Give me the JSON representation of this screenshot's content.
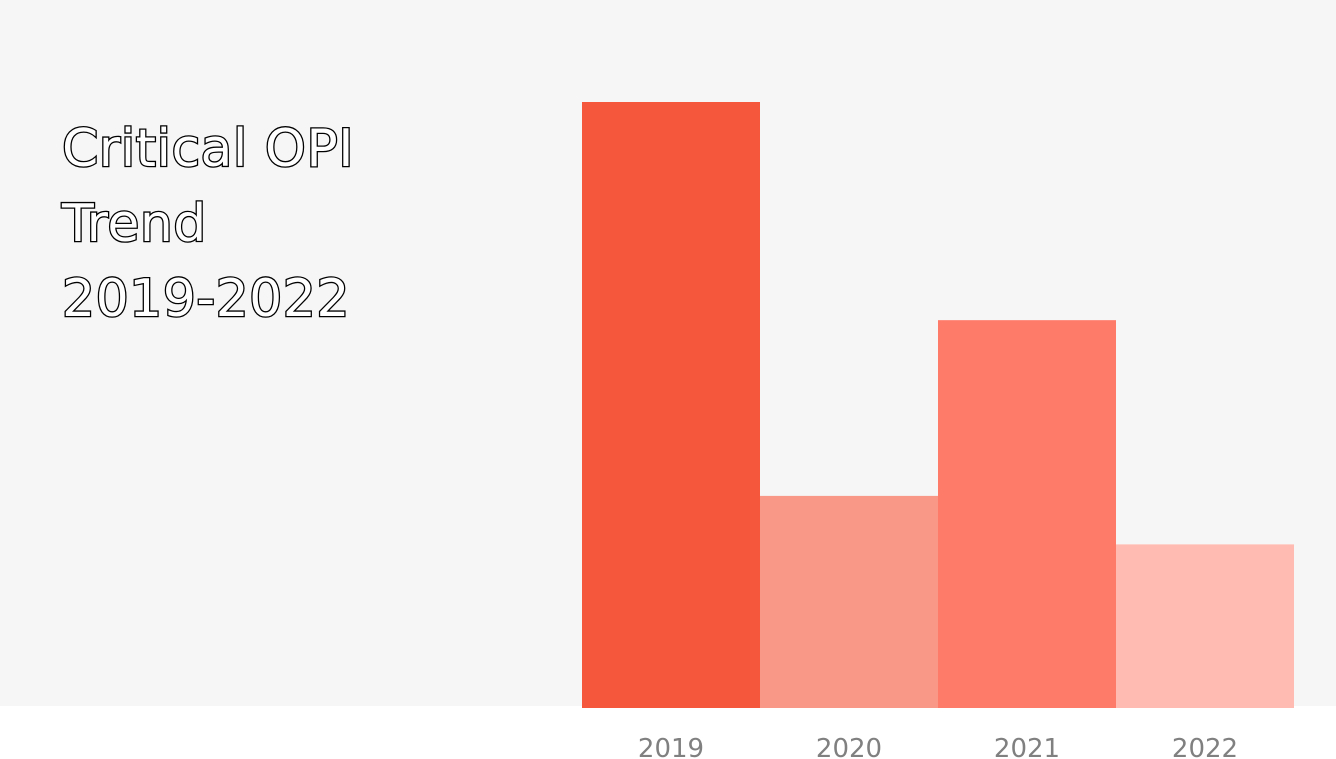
{
  "chart_data": {
    "type": "bar",
    "title_lines": [
      "Critical OPI",
      "Trend",
      "2019-2022"
    ],
    "xlabel": "",
    "ylabel": "",
    "categories": [
      "2019",
      "2020",
      "2021",
      "2022"
    ],
    "values": [
      100,
      35,
      64,
      27
    ],
    "ylim": [
      0,
      100
    ],
    "colors": [
      "#f5573c",
      "#fa9888",
      "#ff7b69",
      "#ffbbb1"
    ],
    "grid": false,
    "legend": "none"
  }
}
